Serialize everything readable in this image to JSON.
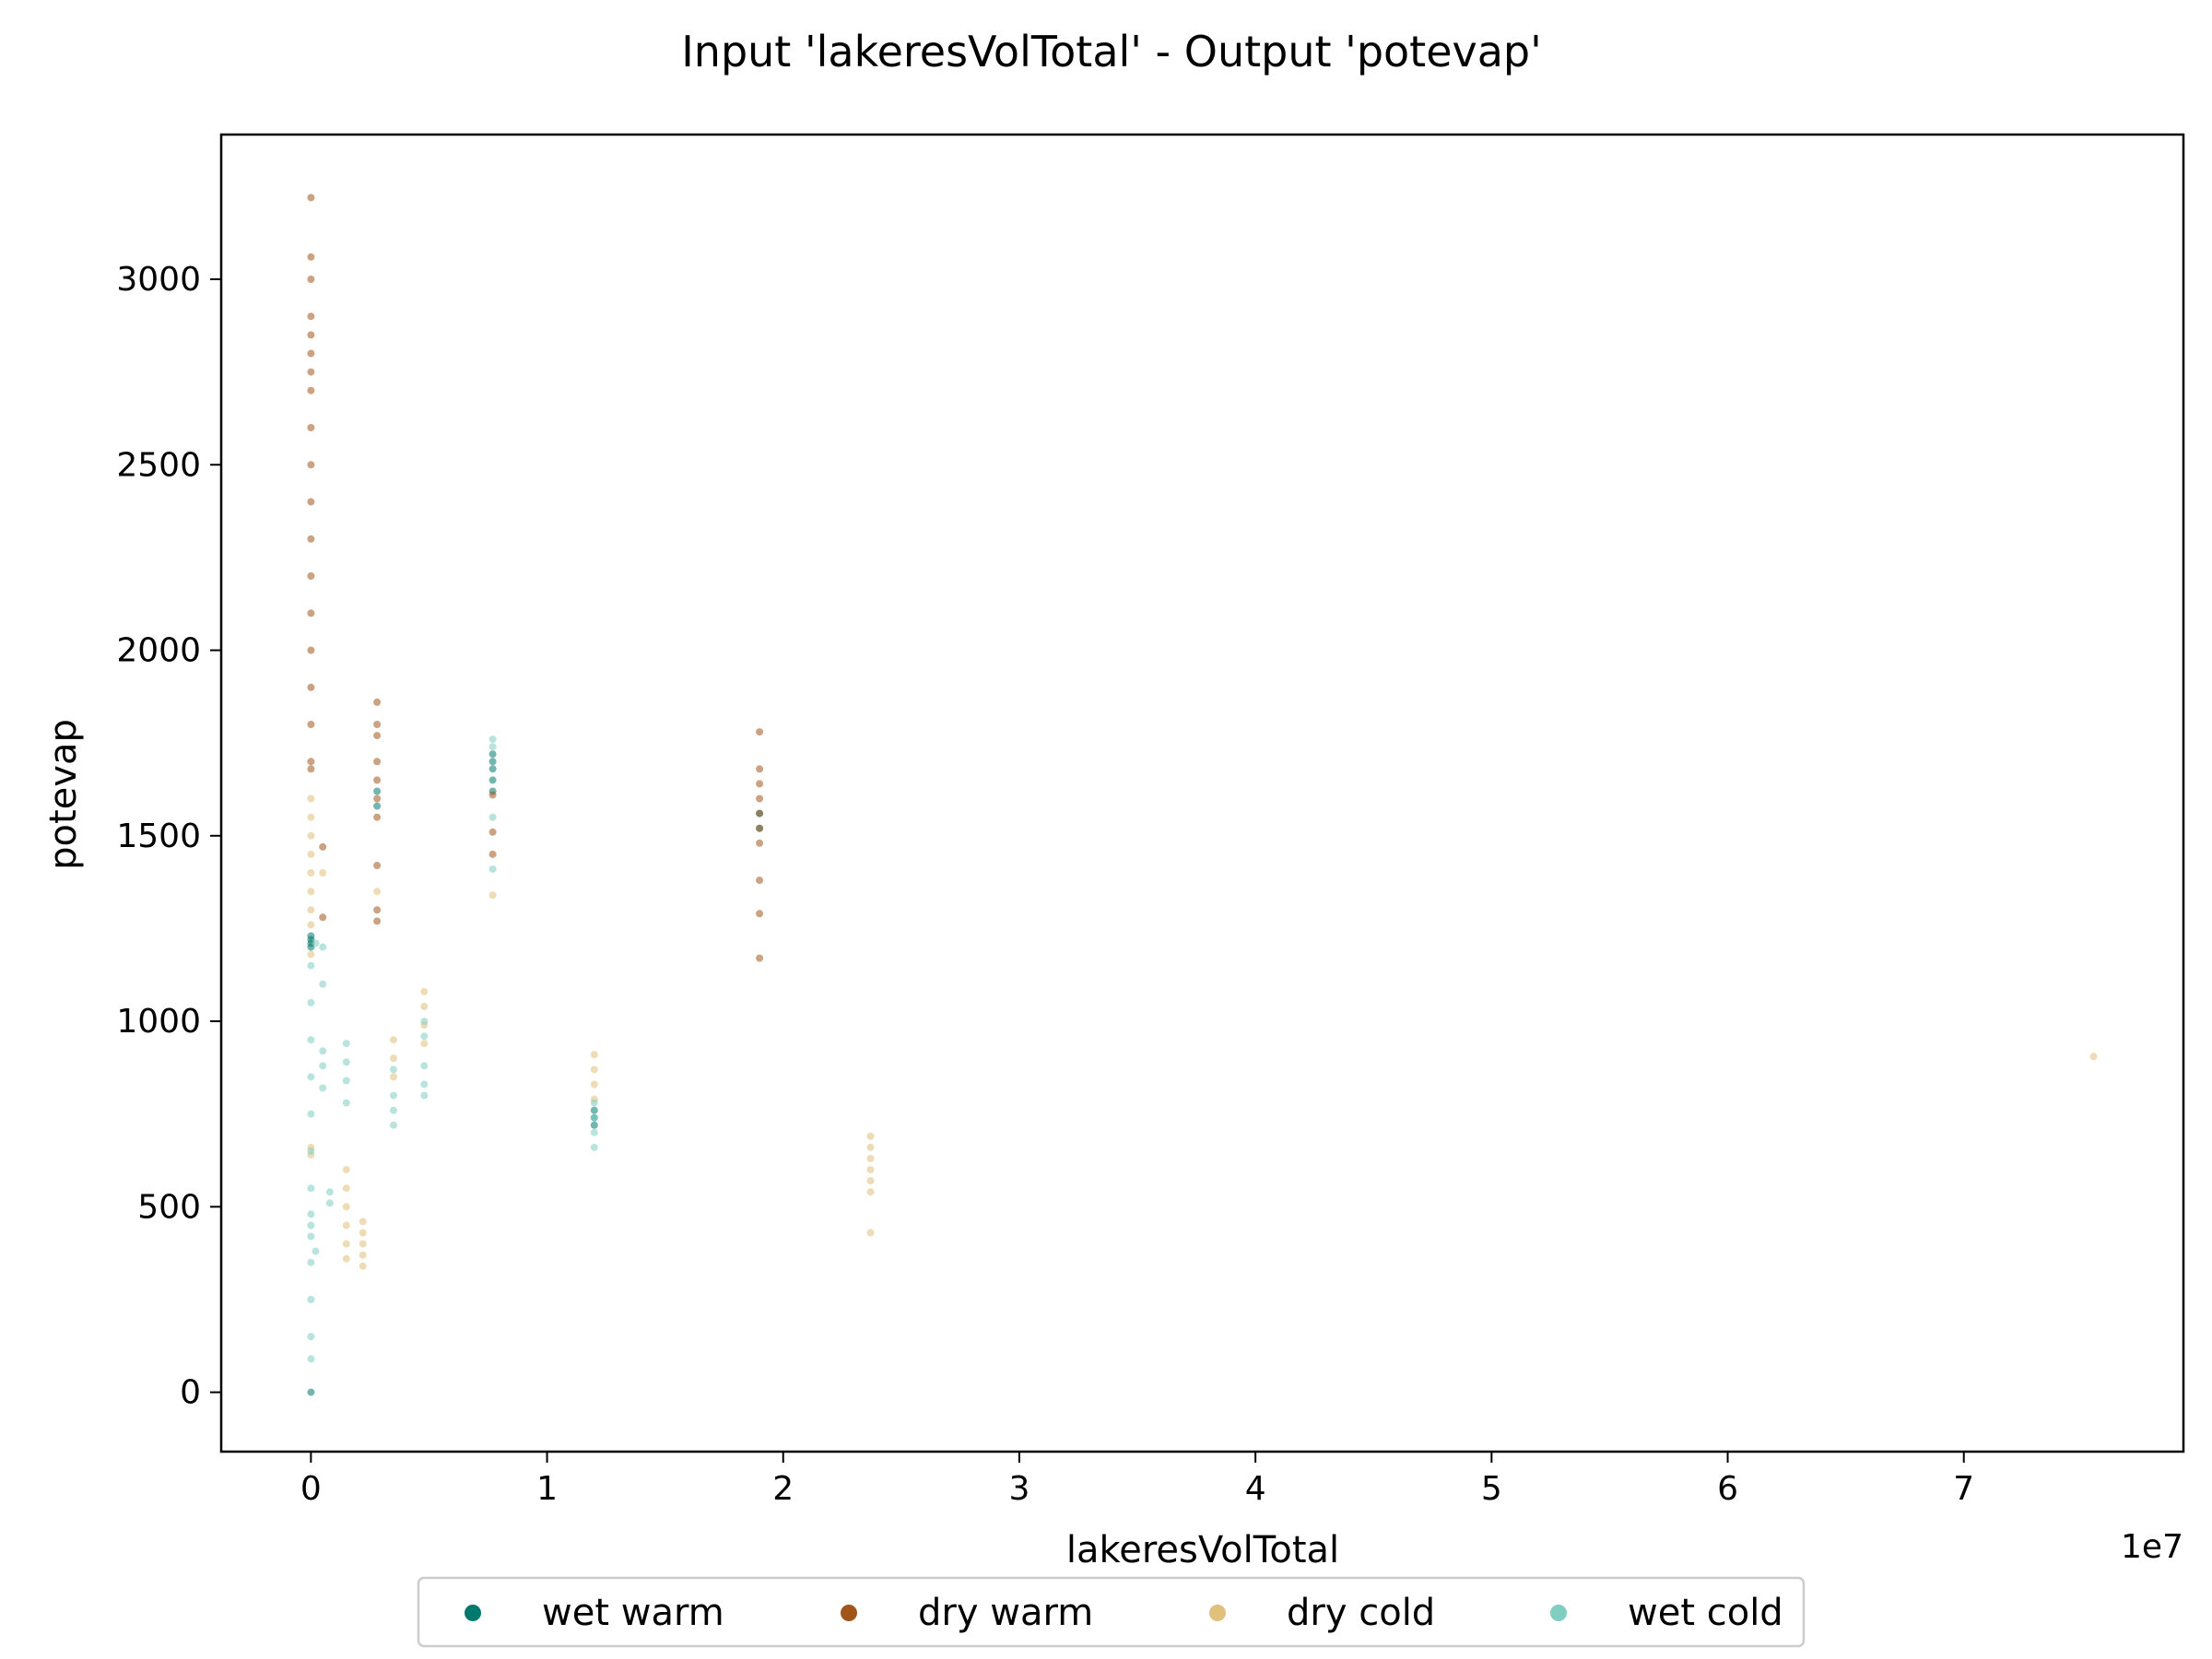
{
  "chart_data": {
    "type": "scatter",
    "title": "Input 'lakeresVolTotal' - Output 'potevap'",
    "xlabel": "lakeresVolTotal",
    "ylabel": "potevap",
    "x_offset_label": "1e7",
    "xlim": [
      -0.38,
      7.93
    ],
    "ylim": [
      -160,
      3390
    ],
    "xticks": [
      0,
      1,
      2,
      3,
      4,
      5,
      6,
      7
    ],
    "yticks": [
      0,
      500,
      1000,
      1500,
      2000,
      2500,
      3000
    ],
    "grid": false,
    "legend_position": "bottom-center",
    "series": [
      {
        "name": "wet warm",
        "color": "#01796f",
        "points": [
          [
            0.0,
            1200
          ],
          [
            0.0,
            1210
          ],
          [
            0.0,
            1220
          ],
          [
            0.0,
            1230
          ],
          [
            0.0,
            0
          ],
          [
            0.77,
            1620
          ],
          [
            0.77,
            1650
          ],
          [
            0.77,
            1680
          ],
          [
            0.77,
            1700
          ],
          [
            0.77,
            1720
          ],
          [
            1.2,
            760
          ],
          [
            1.2,
            740
          ],
          [
            1.2,
            720
          ],
          [
            0.28,
            1580
          ],
          [
            0.28,
            1620
          ],
          [
            1.9,
            1560
          ],
          [
            1.9,
            1520
          ]
        ]
      },
      {
        "name": "dry warm",
        "color": "#a0561b",
        "points": [
          [
            0.0,
            2700
          ],
          [
            0.0,
            2600
          ],
          [
            0.0,
            2500
          ],
          [
            0.0,
            2400
          ],
          [
            0.0,
            2300
          ],
          [
            0.0,
            2200
          ],
          [
            0.0,
            2100
          ],
          [
            0.0,
            2000
          ],
          [
            0.0,
            1900
          ],
          [
            0.0,
            1800
          ],
          [
            0.0,
            1700
          ],
          [
            0.0,
            1680
          ],
          [
            0.0,
            2750
          ],
          [
            0.0,
            2800
          ],
          [
            0.0,
            2900
          ],
          [
            0.0,
            3000
          ],
          [
            0.0,
            3060
          ],
          [
            0.0,
            3220
          ],
          [
            0.28,
            1860
          ],
          [
            0.28,
            1800
          ],
          [
            0.28,
            1770
          ],
          [
            0.28,
            1700
          ],
          [
            0.28,
            1650
          ],
          [
            0.28,
            1600
          ],
          [
            0.28,
            1550
          ],
          [
            0.28,
            1420
          ],
          [
            0.28,
            1300
          ],
          [
            0.28,
            1270
          ],
          [
            1.9,
            1780
          ],
          [
            1.9,
            1680
          ],
          [
            1.9,
            1640
          ],
          [
            1.9,
            1600
          ],
          [
            1.9,
            1560
          ],
          [
            1.9,
            1520
          ],
          [
            1.9,
            1480
          ],
          [
            1.9,
            1380
          ],
          [
            1.9,
            1290
          ],
          [
            1.9,
            1170
          ],
          [
            0.77,
            1610
          ],
          [
            0.77,
            1510
          ],
          [
            0.77,
            1450
          ],
          [
            0.05,
            1470
          ],
          [
            0.05,
            1280
          ],
          [
            0.0,
            2850
          ]
        ]
      },
      {
        "name": "dry cold",
        "color": "#e0c07a",
        "points": [
          [
            0.0,
            1600
          ],
          [
            0.0,
            1550
          ],
          [
            0.0,
            1500
          ],
          [
            0.0,
            1450
          ],
          [
            0.0,
            1400
          ],
          [
            0.0,
            1350
          ],
          [
            0.0,
            1300
          ],
          [
            0.0,
            1260
          ],
          [
            0.0,
            660
          ],
          [
            0.0,
            640
          ],
          [
            0.15,
            600
          ],
          [
            0.15,
            550
          ],
          [
            0.15,
            500
          ],
          [
            0.15,
            450
          ],
          [
            0.15,
            400
          ],
          [
            0.15,
            360
          ],
          [
            0.22,
            460
          ],
          [
            0.22,
            430
          ],
          [
            0.22,
            400
          ],
          [
            0.22,
            370
          ],
          [
            0.22,
            340
          ],
          [
            0.35,
            950
          ],
          [
            0.35,
            900
          ],
          [
            0.35,
            850
          ],
          [
            0.48,
            1080
          ],
          [
            0.48,
            1040
          ],
          [
            0.48,
            990
          ],
          [
            0.48,
            940
          ],
          [
            1.2,
            910
          ],
          [
            1.2,
            870
          ],
          [
            1.2,
            830
          ],
          [
            1.2,
            790
          ],
          [
            2.37,
            690
          ],
          [
            2.37,
            660
          ],
          [
            2.37,
            630
          ],
          [
            2.37,
            600
          ],
          [
            2.37,
            570
          ],
          [
            2.37,
            540
          ],
          [
            2.37,
            430
          ],
          [
            7.55,
            905
          ],
          [
            0.28,
            1350
          ],
          [
            0.05,
            1400
          ],
          [
            0.0,
            1180
          ],
          [
            0.77,
            1340
          ]
        ]
      },
      {
        "name": "wet cold",
        "color": "#80cdc1",
        "points": [
          [
            0.0,
            1150
          ],
          [
            0.0,
            1050
          ],
          [
            0.0,
            950
          ],
          [
            0.0,
            850
          ],
          [
            0.0,
            750
          ],
          [
            0.0,
            650
          ],
          [
            0.0,
            550
          ],
          [
            0.0,
            450
          ],
          [
            0.0,
            350
          ],
          [
            0.0,
            250
          ],
          [
            0.0,
            150
          ],
          [
            0.0,
            90
          ],
          [
            0.0,
            420
          ],
          [
            0.0,
            480
          ],
          [
            0.05,
            1200
          ],
          [
            0.05,
            1100
          ],
          [
            0.05,
            920
          ],
          [
            0.05,
            880
          ],
          [
            0.05,
            820
          ],
          [
            0.08,
            540
          ],
          [
            0.08,
            510
          ],
          [
            0.15,
            940
          ],
          [
            0.15,
            890
          ],
          [
            0.15,
            840
          ],
          [
            0.15,
            780
          ],
          [
            0.35,
            870
          ],
          [
            0.35,
            800
          ],
          [
            0.35,
            760
          ],
          [
            0.35,
            720
          ],
          [
            0.48,
            1000
          ],
          [
            0.48,
            960
          ],
          [
            0.48,
            880
          ],
          [
            0.48,
            830
          ],
          [
            0.48,
            800
          ],
          [
            1.2,
            780
          ],
          [
            1.2,
            740
          ],
          [
            1.2,
            700
          ],
          [
            1.2,
            660
          ],
          [
            0.77,
            1760
          ],
          [
            0.77,
            1740
          ],
          [
            0.77,
            1410
          ],
          [
            0.77,
            1550
          ],
          [
            0.02,
            1210
          ],
          [
            0.02,
            380
          ]
        ]
      }
    ]
  }
}
